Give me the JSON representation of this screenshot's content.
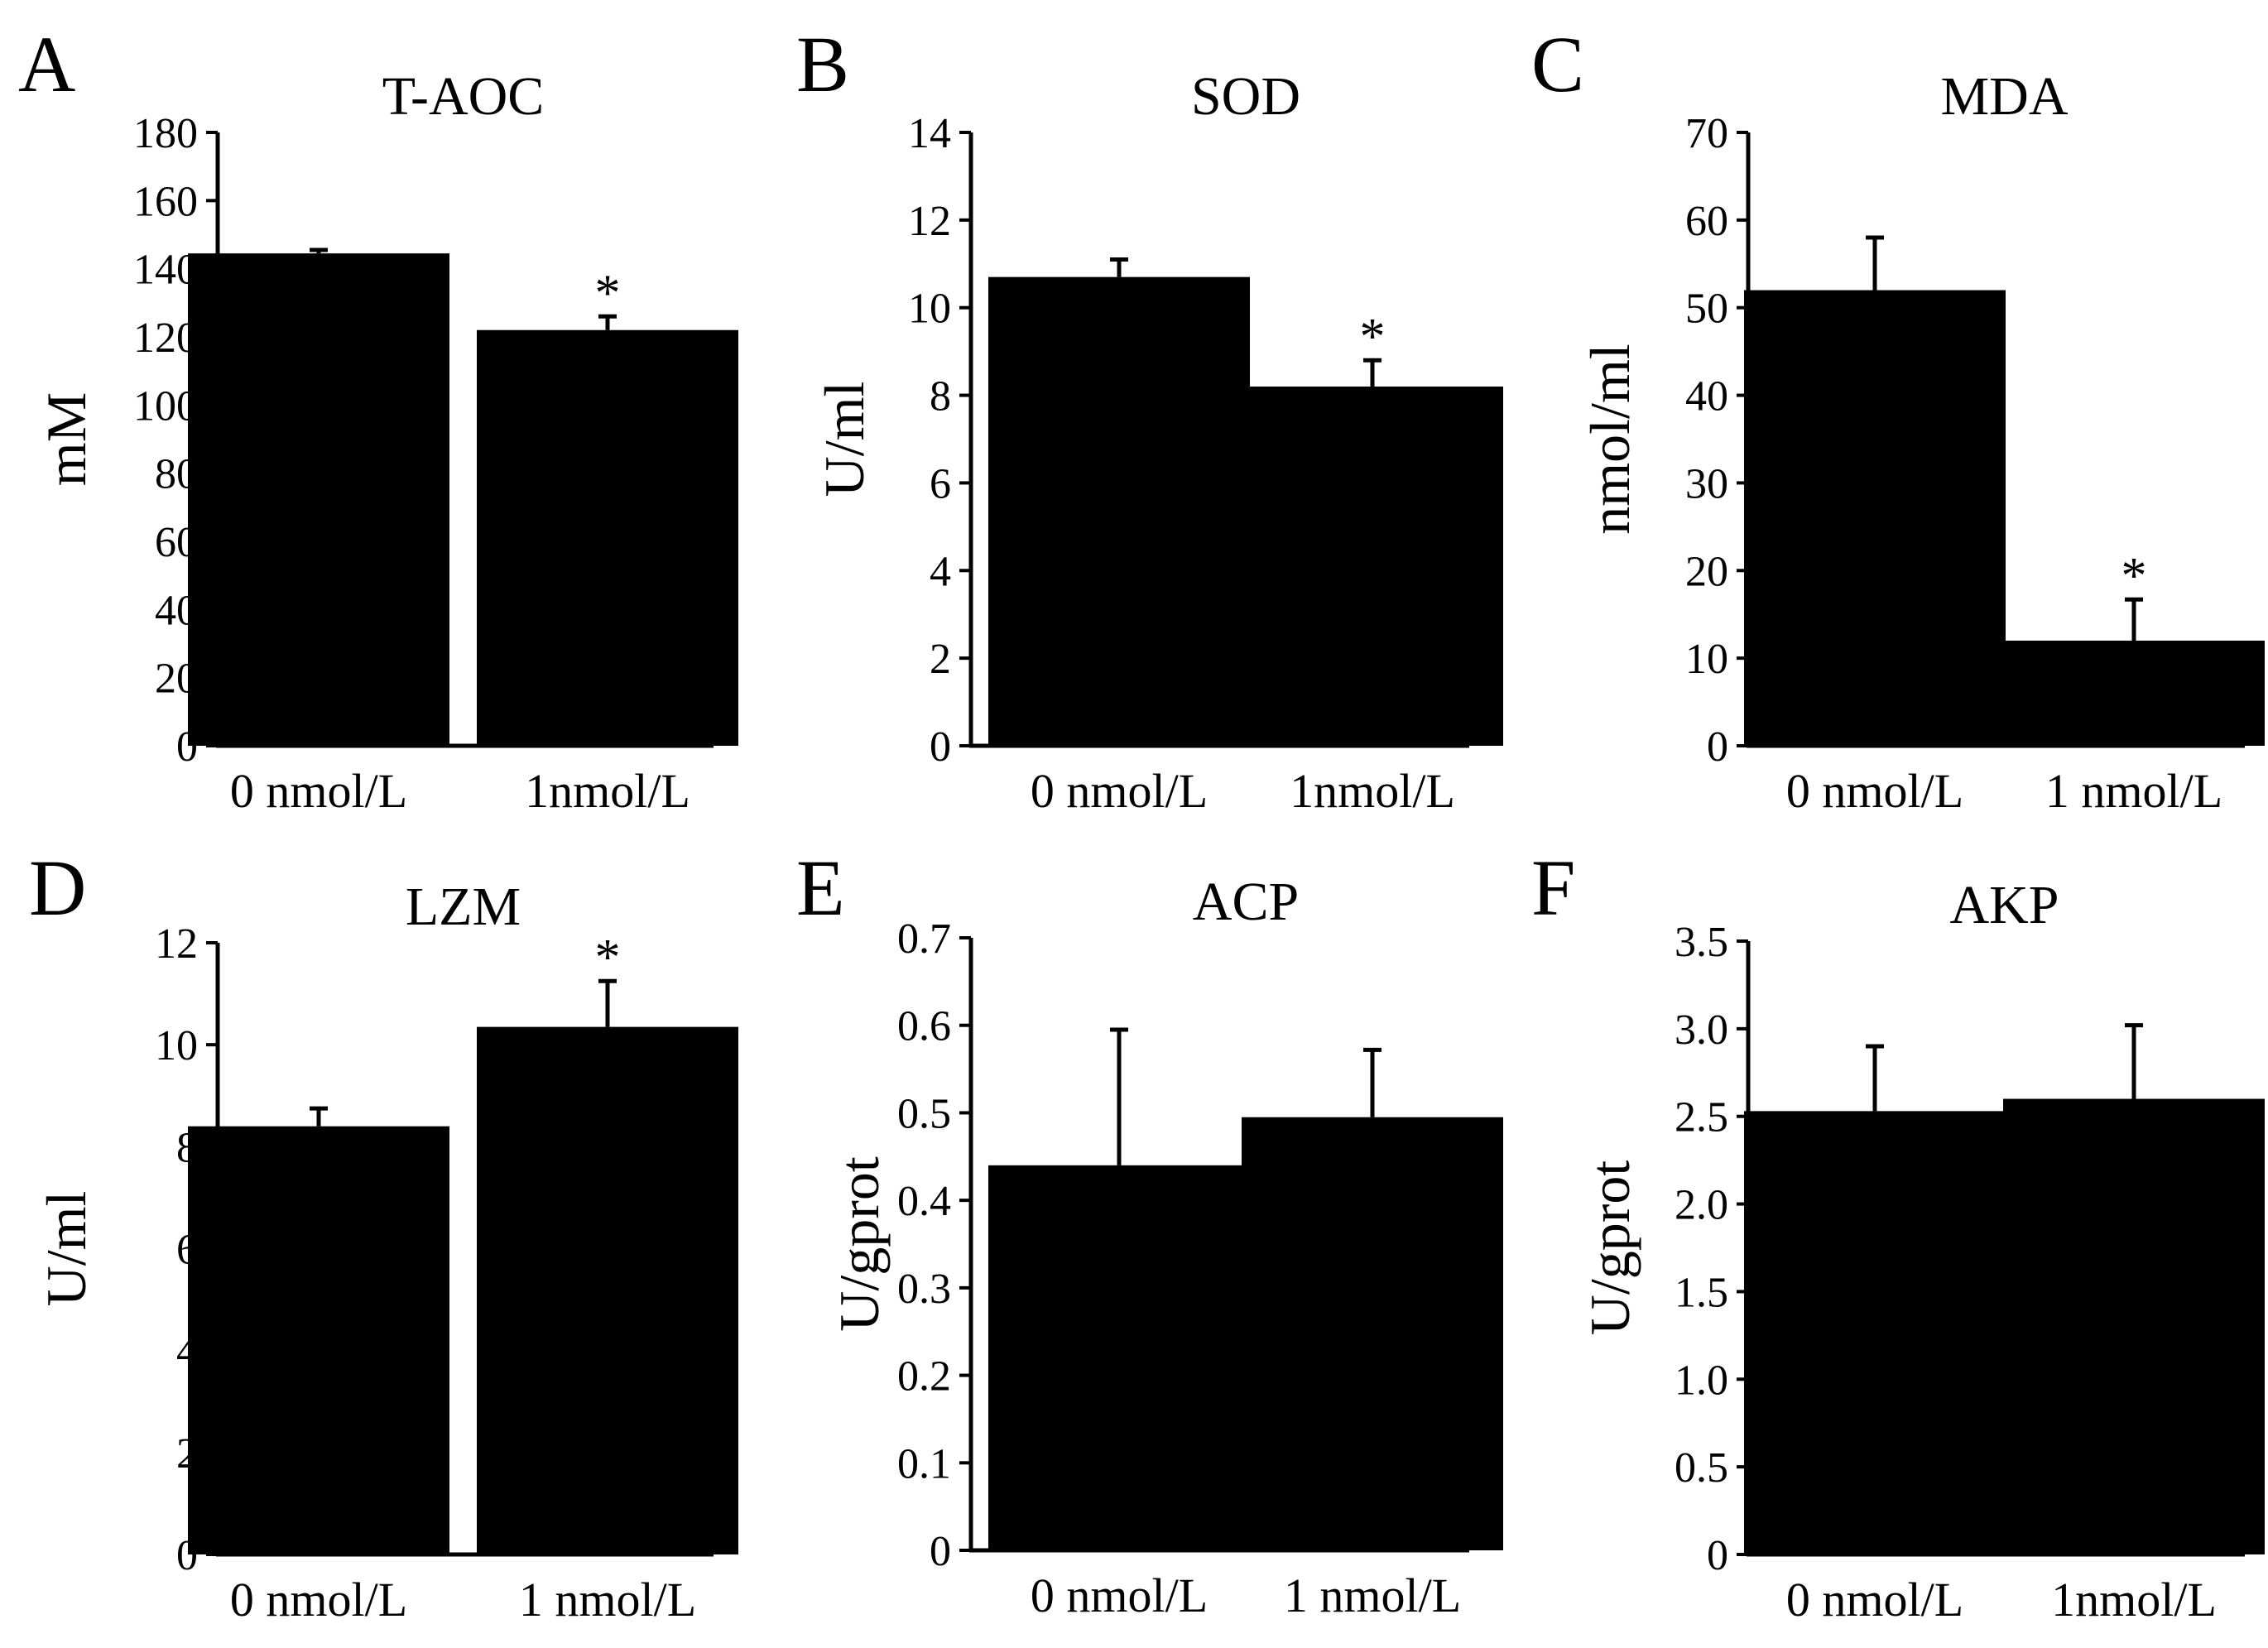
{
  "chart_data": [
    {
      "panel": "A",
      "type": "bar",
      "title": "T-AOC",
      "ylabel": "mM",
      "xlabel": "",
      "ylim": [
        0,
        180
      ],
      "yticks": [
        "0",
        "20",
        "40",
        "60",
        "80",
        "100",
        "120",
        "140",
        "160",
        "180"
      ],
      "categories": [
        "0 nmol/L",
        "1nmol/L"
      ],
      "values": [
        144.5,
        122
      ],
      "errors": [
        1,
        4
      ],
      "significance": [
        "",
        "*"
      ]
    },
    {
      "panel": "B",
      "type": "bar",
      "title": "SOD",
      "ylabel": "U/ml",
      "xlabel": "",
      "ylim": [
        0,
        14
      ],
      "yticks": [
        "0",
        "2",
        "4",
        "6",
        "8",
        "10",
        "12",
        "14"
      ],
      "categories": [
        "0 nmol/L",
        "1nmol/L"
      ],
      "values": [
        10.7,
        8.2
      ],
      "errors": [
        0.4,
        0.6
      ],
      "significance": [
        "",
        "*"
      ]
    },
    {
      "panel": "C",
      "type": "bar",
      "title": "MDA",
      "ylabel": "nmol/ml",
      "xlabel": "",
      "ylim": [
        0,
        70
      ],
      "yticks": [
        "0",
        "10",
        "20",
        "30",
        "40",
        "50",
        "60",
        "70"
      ],
      "categories": [
        "0 nmol/L",
        "1 nmol/L"
      ],
      "values": [
        52,
        12
      ],
      "errors": [
        6,
        4.7
      ],
      "significance": [
        "",
        "*"
      ]
    },
    {
      "panel": "D",
      "type": "bar",
      "title": "LZM",
      "ylabel": "U/ml",
      "xlabel": "",
      "ylim": [
        0,
        12
      ],
      "yticks": [
        "0",
        "2",
        "4",
        "6",
        "8",
        "10",
        "12"
      ],
      "categories": [
        "0 nmol/L",
        "1 nmol/L"
      ],
      "values": [
        8.4,
        10.35
      ],
      "errors": [
        0.35,
        0.9
      ],
      "significance": [
        "",
        "*"
      ]
    },
    {
      "panel": "E",
      "type": "bar",
      "title": "ACP",
      "ylabel": "U/gprot",
      "xlabel": "",
      "ylim": [
        0,
        0.7
      ],
      "yticks": [
        "0",
        "0.1",
        "0.2",
        "0.3",
        "0.4",
        "0.5",
        "0.6",
        "0.7"
      ],
      "categories": [
        "0 nmol/L",
        "1 nmol/L"
      ],
      "values": [
        0.44,
        0.495
      ],
      "errors": [
        0.155,
        0.077
      ],
      "significance": [
        "",
        ""
      ]
    },
    {
      "panel": "F",
      "type": "bar",
      "title": "AKP",
      "ylabel": "U/gprot",
      "xlabel": "",
      "ylim": [
        0,
        3.5
      ],
      "yticks": [
        "0",
        "0.5",
        "1.0",
        "1.5",
        "2.0",
        "2.5",
        "3.0",
        "3.5"
      ],
      "categories": [
        "0 nmol/L",
        "1nmol/L"
      ],
      "values": [
        2.53,
        2.6
      ],
      "errors": [
        0.37,
        0.42
      ],
      "significance": [
        "",
        ""
      ]
    }
  ]
}
